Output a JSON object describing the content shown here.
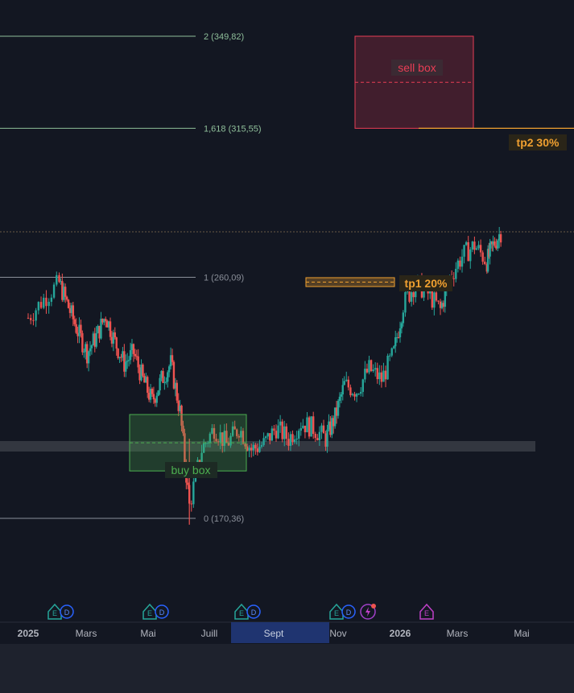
{
  "chart_data": {
    "type": "candlestick",
    "title": "",
    "x_ticks": [
      "2025",
      "Mars",
      "Mai",
      "Juill",
      "Sept",
      "Nov",
      "2026",
      "Mars",
      "Mai"
    ],
    "highlighted_tick": "Sept",
    "y_range": [
      150,
      370
    ],
    "fib_levels": [
      {
        "label": "2 (349,82)",
        "value": 349.82,
        "color": "#8fbf9a"
      },
      {
        "label": "1,618 (315,55)",
        "value": 315.55,
        "color": "#8fbf9a"
      },
      {
        "label": "1 (260,09)",
        "value": 260.09,
        "color": "#8a8f99"
      },
      {
        "label": "0 (170,36)",
        "value": 170.36,
        "color": "#8a8f99"
      }
    ],
    "current_price_line": 277.0,
    "candles_close_path": [
      {
        "x": 0.0,
        "y": 245
      },
      {
        "x": 0.5,
        "y": 252
      },
      {
        "x": 1.0,
        "y": 258
      },
      {
        "x": 1.3,
        "y": 249
      },
      {
        "x": 1.6,
        "y": 240
      },
      {
        "x": 1.9,
        "y": 232
      },
      {
        "x": 2.2,
        "y": 238
      },
      {
        "x": 2.5,
        "y": 246
      },
      {
        "x": 2.8,
        "y": 236
      },
      {
        "x": 3.1,
        "y": 228
      },
      {
        "x": 3.4,
        "y": 232
      },
      {
        "x": 3.7,
        "y": 222
      },
      {
        "x": 4.0,
        "y": 214
      },
      {
        "x": 4.3,
        "y": 222
      },
      {
        "x": 4.6,
        "y": 228
      },
      {
        "x": 4.9,
        "y": 210
      },
      {
        "x": 5.2,
        "y": 175
      },
      {
        "x": 5.6,
        "y": 196
      },
      {
        "x": 6.0,
        "y": 204
      },
      {
        "x": 6.4,
        "y": 198
      },
      {
        "x": 6.8,
        "y": 204
      },
      {
        "x": 7.2,
        "y": 196
      },
      {
        "x": 7.6,
        "y": 198
      },
      {
        "x": 8.0,
        "y": 204
      },
      {
        "x": 8.4,
        "y": 200
      },
      {
        "x": 8.8,
        "y": 206
      },
      {
        "x": 9.2,
        "y": 204
      },
      {
        "x": 9.6,
        "y": 200
      },
      {
        "x": 9.9,
        "y": 208
      },
      {
        "x": 10.2,
        "y": 220
      },
      {
        "x": 10.6,
        "y": 218
      },
      {
        "x": 11.0,
        "y": 226
      },
      {
        "x": 11.4,
        "y": 222
      },
      {
        "x": 11.8,
        "y": 232
      },
      {
        "x": 12.1,
        "y": 250
      },
      {
        "x": 12.5,
        "y": 258
      },
      {
        "x": 12.9,
        "y": 254
      },
      {
        "x": 13.3,
        "y": 248
      },
      {
        "x": 13.6,
        "y": 260
      },
      {
        "x": 14.0,
        "y": 268
      },
      {
        "x": 14.4,
        "y": 272
      },
      {
        "x": 14.8,
        "y": 266
      },
      {
        "x": 15.0,
        "y": 272
      },
      {
        "x": 15.3,
        "y": 278
      }
    ],
    "annotations": [
      {
        "label": "sell box",
        "type": "box",
        "color": "#e83d55",
        "y_top": 349.82,
        "y_bottom": 315.55
      },
      {
        "label": "buy box",
        "type": "box",
        "color": "#4caf50",
        "y_top": 209,
        "y_bottom": 188
      },
      {
        "label": "tp1 20%",
        "type": "target",
        "color": "#f0a030",
        "value": 260.0
      },
      {
        "label": "tp2 30%",
        "type": "target",
        "color": "#f0a030",
        "value": 315.55
      }
    ],
    "event_markers": [
      {
        "icons": [
          "E",
          "D"
        ]
      },
      {
        "icons": [
          "E",
          "D"
        ]
      },
      {
        "icons": [
          "E",
          "D"
        ]
      },
      {
        "icons": [
          "E",
          "D",
          "flash"
        ]
      },
      {
        "icons": [
          "E"
        ]
      }
    ]
  },
  "colors": {
    "background": "#131722",
    "up_candle": "#26a69a",
    "down_candle": "#ef5350",
    "sell_box": "#e83d55",
    "buy_box": "#4caf50",
    "target": "#f0a030",
    "support_zone": "#3a3d45"
  },
  "icons": [
    "earnings-icon",
    "dividend-icon",
    "flash-event-icon"
  ]
}
